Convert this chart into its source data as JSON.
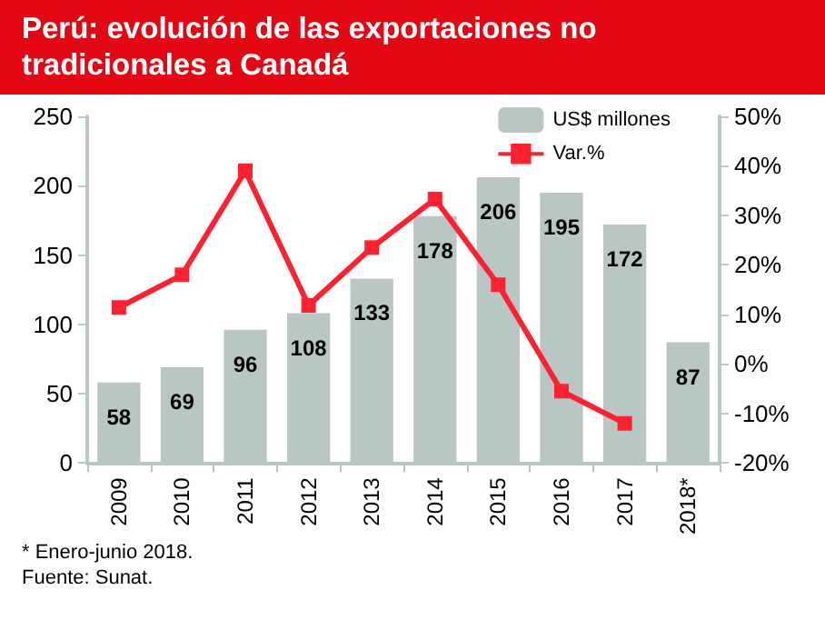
{
  "chart_data": {
    "type": "bar",
    "title": "Perú: evolución de las exportaciones no tradicionales a Canadá",
    "categories": [
      "2009",
      "2010",
      "2011",
      "2012",
      "2013",
      "2014",
      "2015",
      "2016",
      "2017",
      "2018*"
    ],
    "series": [
      {
        "name": "US$ millones",
        "color": "#b8c7c3",
        "values": [
          58,
          69,
          96,
          108,
          133,
          178,
          206,
          195,
          172,
          87
        ],
        "data_labels": true
      },
      {
        "name": "Var.%",
        "type": "line",
        "axis": "y2",
        "color": "#ff2030",
        "marker": "square",
        "values": [
          11.4,
          18,
          39,
          11.8,
          23.5,
          33.3,
          16,
          -5.5,
          -12,
          null
        ]
      }
    ],
    "ylim": [
      0,
      250
    ],
    "yticks": [
      0,
      50,
      100,
      150,
      200,
      250
    ],
    "y2lim": [
      -20,
      50
    ],
    "y2ticks": [
      {
        "value": -20,
        "label": "-20%"
      },
      {
        "value": -10,
        "label": "-10%"
      },
      {
        "value": 0,
        "label": "0%"
      },
      {
        "value": 10,
        "label": "10%"
      },
      {
        "value": 20,
        "label": "20%"
      },
      {
        "value": 30,
        "label": "30%"
      },
      {
        "value": 40,
        "label": "40%"
      },
      {
        "value": 50,
        "label": "50%"
      }
    ],
    "grid": false,
    "legend": "top right",
    "annotations": [
      "* Enero-junio 2018.",
      "Fuente: Sunat."
    ]
  }
}
